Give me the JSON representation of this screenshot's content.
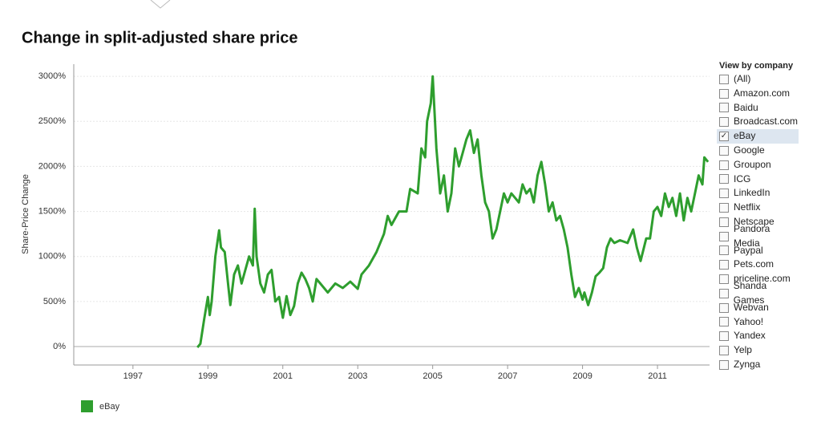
{
  "chart_data": {
    "type": "line",
    "title": "Change in split-adjusted share price",
    "y_label": "Share-Price Change",
    "x": [
      1998.72,
      1998.8,
      1998.9,
      1999.0,
      1999.05,
      1999.1,
      1999.2,
      1999.3,
      1999.35,
      1999.45,
      1999.55,
      1999.6,
      1999.7,
      1999.8,
      1999.9,
      2000.0,
      2000.1,
      2000.2,
      2000.25,
      2000.3,
      2000.4,
      2000.5,
      2000.6,
      2000.7,
      2000.8,
      2000.9,
      2001.0,
      2001.1,
      2001.2,
      2001.3,
      2001.4,
      2001.5,
      2001.6,
      2001.7,
      2001.8,
      2001.9,
      2002.0,
      2002.2,
      2002.4,
      2002.6,
      2002.8,
      2003.0,
      2003.1,
      2003.3,
      2003.5,
      2003.7,
      2003.8,
      2003.9,
      2004.1,
      2004.3,
      2004.4,
      2004.6,
      2004.7,
      2004.8,
      2004.85,
      2004.95,
      2005.0,
      2005.05,
      2005.1,
      2005.2,
      2005.3,
      2005.4,
      2005.5,
      2005.6,
      2005.7,
      2005.8,
      2005.9,
      2006.0,
      2006.1,
      2006.2,
      2006.3,
      2006.4,
      2006.5,
      2006.6,
      2006.7,
      2006.8,
      2006.9,
      2007.0,
      2007.1,
      2007.2,
      2007.3,
      2007.4,
      2007.5,
      2007.6,
      2007.7,
      2007.8,
      2007.9,
      2008.0,
      2008.1,
      2008.2,
      2008.3,
      2008.4,
      2008.5,
      2008.6,
      2008.7,
      2008.8,
      2008.9,
      2009.0,
      2009.05,
      2009.15,
      2009.25,
      2009.35,
      2009.45,
      2009.55,
      2009.65,
      2009.75,
      2009.85,
      2010.0,
      2010.2,
      2010.35,
      2010.45,
      2010.55,
      2010.7,
      2010.8,
      2010.9,
      2011.0,
      2011.1,
      2011.2,
      2011.3,
      2011.4,
      2011.5,
      2011.6,
      2011.7,
      2011.8,
      2011.9,
      2012.0,
      2012.1,
      2012.2,
      2012.25,
      2012.35
    ],
    "series": [
      {
        "name": "eBay",
        "color": "#2e9e2e",
        "values": [
          -10,
          30,
          300,
          550,
          350,
          500,
          1000,
          1290,
          1100,
          1050,
          650,
          460,
          800,
          900,
          700,
          850,
          1000,
          900,
          1530,
          1000,
          700,
          600,
          800,
          850,
          500,
          550,
          320,
          560,
          350,
          450,
          700,
          820,
          750,
          650,
          500,
          750,
          700,
          600,
          700,
          650,
          720,
          640,
          800,
          900,
          1050,
          1250,
          1450,
          1350,
          1500,
          1500,
          1750,
          1700,
          2200,
          2100,
          2500,
          2700,
          3000,
          2600,
          2200,
          1700,
          1900,
          1500,
          1700,
          2200,
          2000,
          2150,
          2300,
          2400,
          2150,
          2300,
          1900,
          1600,
          1500,
          1200,
          1300,
          1500,
          1700,
          1600,
          1700,
          1650,
          1600,
          1800,
          1700,
          1750,
          1600,
          1900,
          2050,
          1800,
          1500,
          1600,
          1400,
          1450,
          1300,
          1100,
          800,
          550,
          650,
          520,
          600,
          460,
          600,
          780,
          820,
          870,
          1100,
          1200,
          1150,
          1180,
          1150,
          1300,
          1100,
          950,
          1200,
          1200,
          1500,
          1550,
          1450,
          1700,
          1550,
          1650,
          1450,
          1700,
          1400,
          1650,
          1500,
          1700,
          1900,
          1800,
          2100,
          2050
        ]
      }
    ],
    "xlim": [
      1995.42,
      2012.39
    ],
    "xticks": [
      1997,
      1999,
      2001,
      2003,
      2005,
      2007,
      2009,
      2011
    ],
    "ylim": [
      -205,
      3135
    ],
    "yticks": [
      {
        "value": 0,
        "label": "0%"
      },
      {
        "value": 500,
        "label": "500%"
      },
      {
        "value": 1000,
        "label": "1000%"
      },
      {
        "value": 1500,
        "label": "1500%"
      },
      {
        "value": 2000,
        "label": "2000%"
      },
      {
        "value": 2500,
        "label": "2500%"
      },
      {
        "value": 3000,
        "label": "3000%"
      }
    ],
    "grid": true
  },
  "filter": {
    "title": "View by company",
    "options": [
      {
        "label": "(All)",
        "checked": false
      },
      {
        "label": "Amazon.com",
        "checked": false
      },
      {
        "label": "Baidu",
        "checked": false
      },
      {
        "label": "Broadcast.com",
        "checked": false
      },
      {
        "label": "eBay",
        "checked": true
      },
      {
        "label": "Google",
        "checked": false
      },
      {
        "label": "Groupon",
        "checked": false
      },
      {
        "label": "ICG",
        "checked": false
      },
      {
        "label": "LinkedIn",
        "checked": false
      },
      {
        "label": "Netflix",
        "checked": false
      },
      {
        "label": "Netscape",
        "checked": false
      },
      {
        "label": "Pandora Media",
        "checked": false
      },
      {
        "label": "Paypal",
        "checked": false
      },
      {
        "label": "Pets.com",
        "checked": false
      },
      {
        "label": "priceline.com",
        "checked": false
      },
      {
        "label": "Shanda Games",
        "checked": false
      },
      {
        "label": "Webvan",
        "checked": false
      },
      {
        "label": "Yahoo!",
        "checked": false
      },
      {
        "label": "Yandex",
        "checked": false
      },
      {
        "label": "Yelp",
        "checked": false
      },
      {
        "label": "Zynga",
        "checked": false
      }
    ]
  }
}
